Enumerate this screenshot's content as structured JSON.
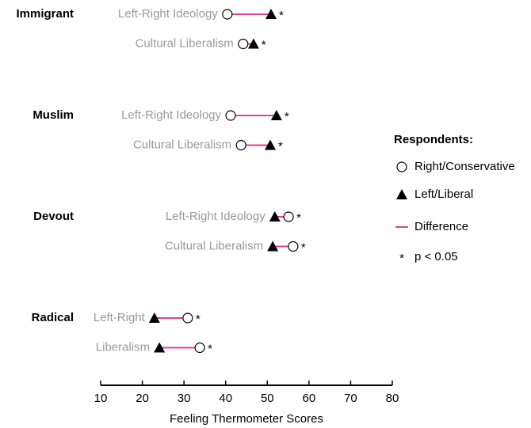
{
  "chart_data": {
    "type": "dumbbell",
    "categories": [
      "Left-Right Ideology",
      "Cultural Liberalism",
      "Left-Right Ideology",
      "Cultural Liberalism",
      "Left-Right Ideology",
      "Cultural Liberalism",
      "Left-Right",
      "Liberalism"
    ],
    "group_labels": [
      "Immigrant",
      null,
      "Muslim",
      null,
      "Devout",
      null,
      "Radical",
      null
    ],
    "series": [
      {
        "name": "Right/Conservative",
        "marker": "circle",
        "color": "#000000",
        "values": [
          40.4,
          44.2,
          41.2,
          43.7,
          55.1,
          56.2,
          30.9,
          33.8
        ]
      },
      {
        "name": "Left/Liberal",
        "marker": "triangle",
        "color": "#000000",
        "values": [
          50.9,
          46.7,
          52.2,
          50.7,
          51.8,
          51.3,
          22.9,
          24.1
        ]
      }
    ],
    "difference": {
      "name": "Difference",
      "color": "#e0409a"
    },
    "significance": {
      "symbol": "*",
      "name": "p < 0.05"
    },
    "significance_marks": [
      "*",
      "*",
      "*",
      "*",
      "*",
      "*",
      "*",
      "*"
    ],
    "legend_title": "Respondents:",
    "xlabel": "Feeling Thermometer Scores",
    "xlim": [
      10,
      80
    ],
    "xticks": [
      10,
      20,
      30,
      40,
      50,
      60,
      70,
      80
    ]
  }
}
